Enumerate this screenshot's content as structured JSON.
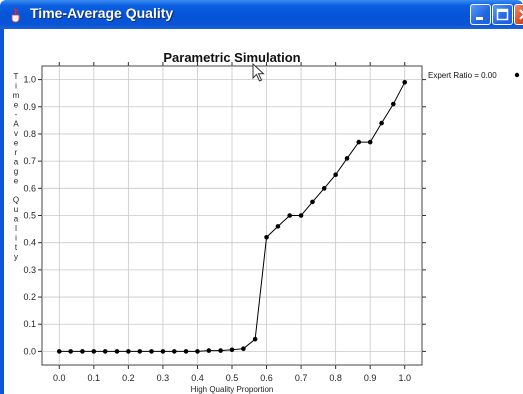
{
  "window": {
    "title": "Time-Average Quality",
    "icon": "java-cup-icon",
    "controls": [
      "minimize-icon",
      "maximize-icon",
      "close-icon"
    ],
    "titlebar_color": "#0553d6",
    "close_color": "#d8451e"
  },
  "chart_data": {
    "type": "line",
    "title": "Parametric Simulation",
    "xlabel": "High Quality Proportion",
    "ylabel": "Time-Average Quality",
    "xlim": [
      -0.05,
      1.05
    ],
    "ylim": [
      -0.05,
      1.05
    ],
    "x_ticks": [
      "0.0",
      "0.1",
      "0.2",
      "0.3",
      "0.4",
      "0.5",
      "0.6",
      "0.7",
      "0.8",
      "0.9",
      "1.0"
    ],
    "y_ticks": [
      "0.0",
      "0.1",
      "0.2",
      "0.3",
      "0.4",
      "0.5",
      "0.6",
      "0.7",
      "0.8",
      "0.9",
      "1.0"
    ],
    "grid": true,
    "legend_position": "top-right outside",
    "series": [
      {
        "name": "Expert Ratio = 0.00",
        "color": "#000000",
        "x": [
          0.0,
          0.033,
          0.067,
          0.1,
          0.133,
          0.167,
          0.2,
          0.233,
          0.267,
          0.3,
          0.333,
          0.367,
          0.4,
          0.433,
          0.467,
          0.5,
          0.533,
          0.567,
          0.6,
          0.633,
          0.667,
          0.7,
          0.733,
          0.767,
          0.8,
          0.833,
          0.867,
          0.9,
          0.933,
          0.967,
          1.0
        ],
        "y": [
          0.0,
          0.0,
          0.0,
          0.0,
          0.0,
          0.0,
          0.0,
          0.0,
          0.0,
          0.0,
          0.0,
          0.0,
          0.0,
          0.003,
          0.003,
          0.006,
          0.01,
          0.045,
          0.42,
          0.46,
          0.5,
          0.5,
          0.55,
          0.6,
          0.65,
          0.71,
          0.77,
          0.77,
          0.84,
          0.91,
          0.99
        ]
      }
    ]
  }
}
